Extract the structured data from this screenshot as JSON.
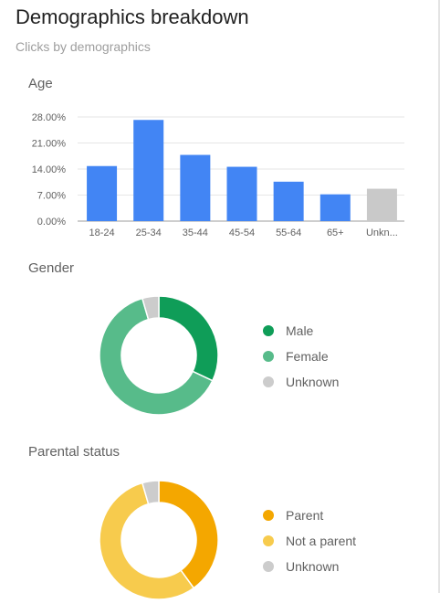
{
  "header": {
    "title": "Demographics breakdown",
    "subtitle": "Clicks by demographics"
  },
  "sections": {
    "age": "Age",
    "gender": "Gender",
    "parental": "Parental status"
  },
  "chart_data": [
    {
      "type": "bar",
      "title": "Age",
      "categories": [
        "18-24",
        "25-34",
        "35-44",
        "45-54",
        "55-64",
        "65+",
        "Unkn..."
      ],
      "values": [
        14.8,
        27.2,
        17.8,
        14.6,
        10.6,
        7.2,
        8.7
      ],
      "yticks": [
        "0.00%",
        "7.00%",
        "14.00%",
        "21.00%",
        "28.00%"
      ],
      "ylim": [
        0,
        28
      ],
      "colors": [
        "#4285f4",
        "#4285f4",
        "#4285f4",
        "#4285f4",
        "#4285f4",
        "#4285f4",
        "#c9c9c9"
      ],
      "grid": true
    },
    {
      "type": "pie",
      "title": "Gender",
      "labels": [
        "Male",
        "Female",
        "Unknown"
      ],
      "values": [
        32,
        63.5,
        4.5
      ],
      "colors": [
        "#0f9d58",
        "#57bb8a",
        "#cccccc"
      ],
      "legend": "right"
    },
    {
      "type": "pie",
      "title": "Parental status",
      "labels": [
        "Parent",
        "Not a parent",
        "Unknown"
      ],
      "values": [
        40,
        55.5,
        4.5
      ],
      "colors": [
        "#f4a700",
        "#f7cb4d",
        "#cccccc"
      ],
      "legend": "right"
    }
  ]
}
